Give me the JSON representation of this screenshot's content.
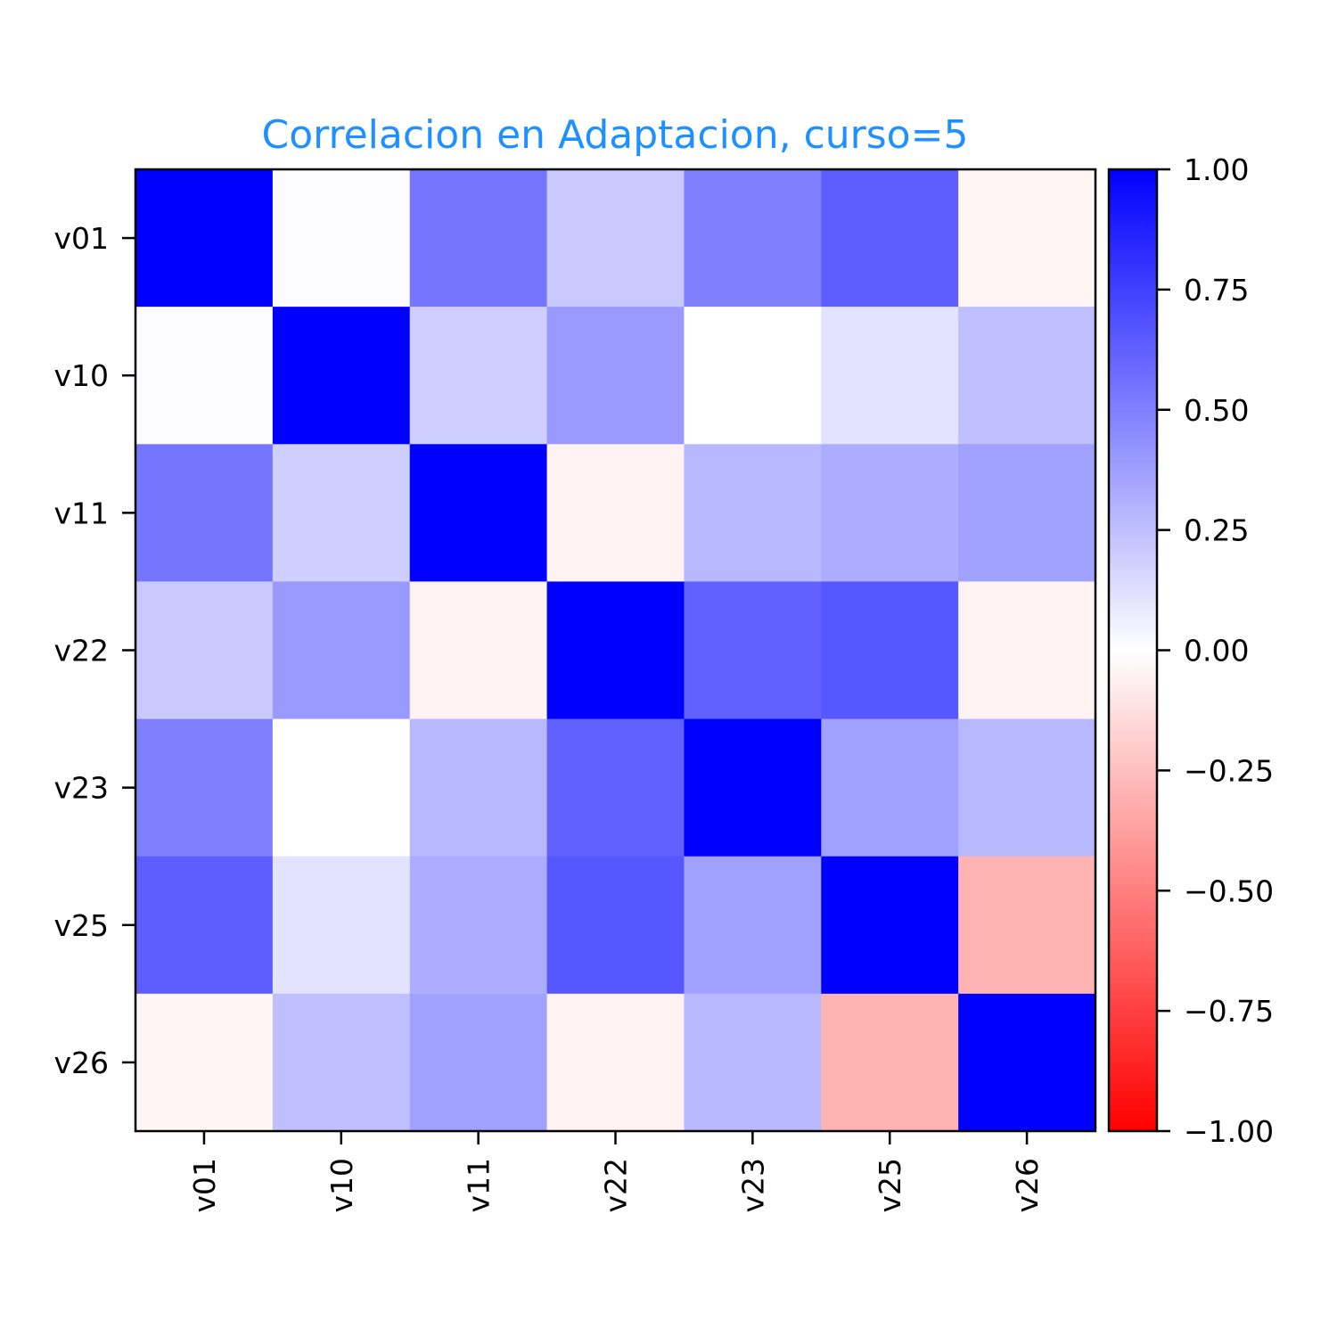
{
  "chart_data": {
    "type": "heatmap",
    "title": "Correlacion en Adaptacion, curso=5",
    "title_color": "#1e90ff",
    "x_categories": [
      "v01",
      "v10",
      "v11",
      "v22",
      "v23",
      "v25",
      "v26"
    ],
    "y_categories": [
      "v01",
      "v10",
      "v11",
      "v22",
      "v23",
      "v25",
      "v26"
    ],
    "values": [
      [
        1.0,
        0.01,
        0.54,
        0.21,
        0.5,
        0.63,
        -0.04
      ],
      [
        0.01,
        1.0,
        0.19,
        0.4,
        0.0,
        0.11,
        0.25
      ],
      [
        0.54,
        0.19,
        1.0,
        -0.05,
        0.28,
        0.32,
        0.37
      ],
      [
        0.21,
        0.4,
        -0.05,
        1.0,
        0.62,
        0.66,
        -0.05
      ],
      [
        0.5,
        0.0,
        0.28,
        0.62,
        1.0,
        0.37,
        0.28
      ],
      [
        0.63,
        0.11,
        0.32,
        0.66,
        0.37,
        1.0,
        -0.3
      ],
      [
        -0.04,
        0.25,
        0.37,
        -0.05,
        0.28,
        -0.3,
        1.0
      ]
    ],
    "colorbar": {
      "min": -1.0,
      "max": 1.0,
      "ticks": [
        "1.00",
        "0.75",
        "0.50",
        "0.25",
        "0.00",
        "−0.25",
        "−0.50",
        "−0.75",
        "−1.00"
      ],
      "colormap": [
        "#ff0000",
        "#ffffff",
        "#0000ff"
      ]
    },
    "x_tick_rotation": "vertical",
    "grid": false
  }
}
